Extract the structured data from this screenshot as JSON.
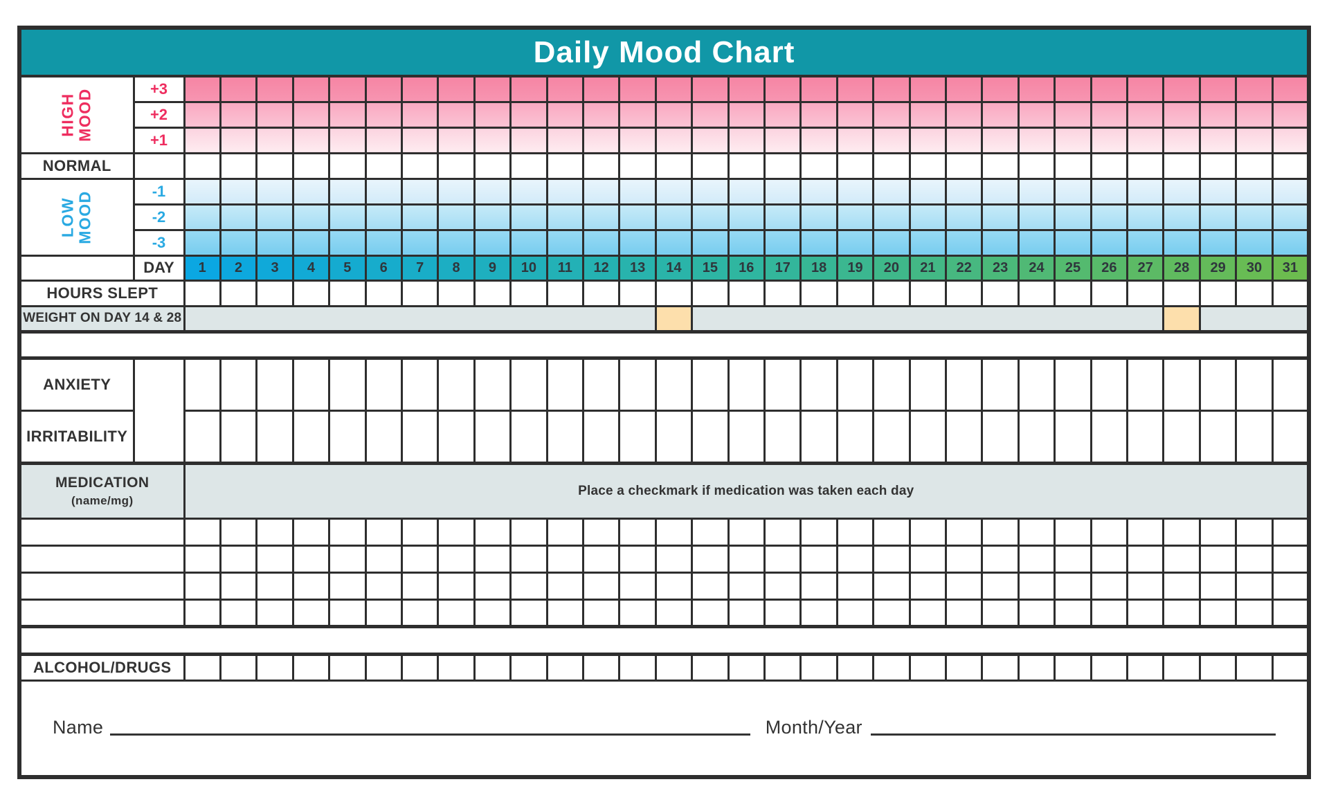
{
  "title": "Daily Mood Chart",
  "colors": {
    "title_bar": "#1197A7",
    "border": "#2E2E2E",
    "text_dark": "#333333",
    "high_mood_accent": "#EE2D5F",
    "low_mood_accent": "#29A9E2",
    "gray_band": "#DDE6E7",
    "weight_highlight_orange": "#FDDFAC",
    "day_header_gradient_stops": [
      "#0BA7E2",
      "#2FB6A0",
      "#6CBC4F"
    ]
  },
  "mood": {
    "high_lines": [
      "HIGH",
      "MOOD"
    ],
    "low_lines": [
      "LOW",
      "MOOD"
    ],
    "normal_label": "NORMAL",
    "levels": [
      {
        "label": "+3",
        "top": "#F685A4",
        "bottom": "#F795B1"
      },
      {
        "label": "+2",
        "top": "#F9A9C1",
        "bottom": "#FBC3D4"
      },
      {
        "label": "+1",
        "top": "#FCD4E0",
        "bottom": "#FEEBF0"
      },
      {
        "label": "-1",
        "top": "#E9F5FC",
        "bottom": "#D2EBF9"
      },
      {
        "label": "-2",
        "top": "#C6EAF8",
        "bottom": "#A5DDF4"
      },
      {
        "label": "-3",
        "top": "#97DAF4",
        "bottom": "#79CDEF"
      }
    ]
  },
  "day_row": {
    "label": "DAY",
    "days": [
      1,
      2,
      3,
      4,
      5,
      6,
      7,
      8,
      9,
      10,
      11,
      12,
      13,
      14,
      15,
      16,
      17,
      18,
      19,
      20,
      21,
      22,
      23,
      24,
      25,
      26,
      27,
      28,
      29,
      30,
      31
    ]
  },
  "tracking": {
    "hours_slept_label": "HOURS SLEPT",
    "weight_label": "WEIGHT ON DAY 14 & 28",
    "weight_highlight_days": [
      14,
      28
    ],
    "anxiety_label": "ANXIETY",
    "irritability_label": "IRRITABILITY"
  },
  "medication": {
    "label": "MEDICATION",
    "sublabel": "(name/mg)",
    "instruction": "Place a checkmark if medication was taken each day",
    "blank_row_count": 4
  },
  "alcohol_label": "ALCOHOL/DRUGS",
  "footer": {
    "name_label": "Name",
    "month_label": "Month/Year"
  }
}
